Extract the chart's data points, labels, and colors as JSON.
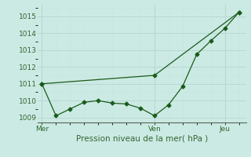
{
  "bg_color": "#cceae4",
  "grid_color_major": "#b8d8d2",
  "grid_color_minor": "#c8e4de",
  "line_color": "#1a5c1a",
  "xlabel": "Pression niveau de la mer( hPa )",
  "ylim": [
    1008.7,
    1015.7
  ],
  "yticks": [
    1009,
    1010,
    1011,
    1012,
    1013,
    1014,
    1015
  ],
  "xtick_labels": [
    "Mer",
    "Ven",
    "Jeu"
  ],
  "xtick_positions": [
    0,
    8,
    13
  ],
  "xlim": [
    -0.3,
    14.5
  ],
  "line1_x": [
    0,
    1,
    2,
    3,
    4,
    5,
    6,
    7,
    8,
    9,
    10,
    11,
    12,
    13,
    14
  ],
  "line1_y": [
    1011.0,
    1009.1,
    1009.5,
    1009.9,
    1010.0,
    1009.85,
    1009.8,
    1009.55,
    1009.1,
    1009.75,
    1010.85,
    1012.75,
    1013.55,
    1014.3,
    1015.25
  ],
  "line2_x": [
    0,
    8,
    14
  ],
  "line2_y": [
    1011.0,
    1011.5,
    1015.25
  ],
  "ylabel_fontsize": 6,
  "xlabel_fontsize": 7.5,
  "tick_fontsize": 6.5,
  "title_fontsize": 7
}
